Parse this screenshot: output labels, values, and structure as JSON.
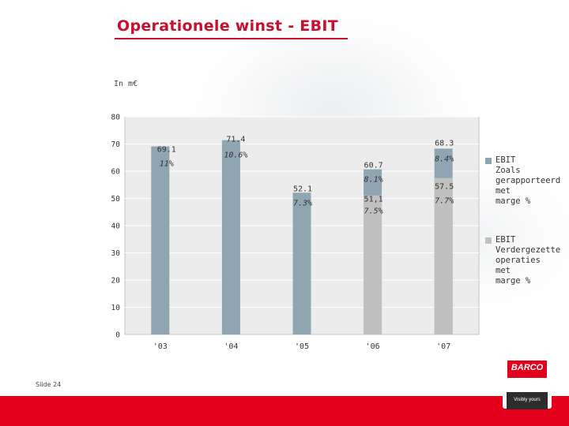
{
  "title": "Operationele winst - EBIT",
  "unit_label": "In m€",
  "slide_label": "Slide 24",
  "logo": {
    "brand": "BARCO",
    "tagline": "Visibly yours"
  },
  "colors": {
    "title": "#c8102e",
    "bar_blue": "#8fa5b2",
    "bar_grey": "#c0c0c0",
    "plot_bg": "#ececec",
    "brand_red": "#e3001b"
  },
  "legend": [
    {
      "label": "EBIT\nZoals\ngerapporteerd\nmet\nmarge %",
      "color": "#8fa5b2"
    },
    {
      "label": "EBIT\nVerdergezette\noperaties\nmet\nmarge %",
      "color": "#c0c0c0"
    }
  ],
  "chart_data": {
    "type": "bar",
    "categories": [
      "'03",
      "'04",
      "'05",
      "'06",
      "'07"
    ],
    "ylim": [
      0,
      80
    ],
    "yticks": [
      0,
      10,
      20,
      30,
      40,
      50,
      60,
      70,
      80
    ],
    "grid": true,
    "legend_position": "right",
    "series": [
      {
        "name": "EBIT Zoals gerapporteerd met marge %",
        "values": [
          69.1,
          71.4,
          52.1,
          60.7,
          68.3
        ],
        "value_labels": [
          "69.1",
          "71.4",
          "52.1",
          "60.7",
          "68.3"
        ],
        "margins": [
          "11%",
          "10.6%",
          "7.3%",
          "8.1%",
          "8.4%"
        ]
      },
      {
        "name": "EBIT Verdergezette operaties met marge %",
        "values": [
          null,
          null,
          null,
          51.1,
          57.5
        ],
        "value_labels": [
          null,
          null,
          null,
          "51,1",
          "57.5"
        ],
        "margins": [
          null,
          null,
          null,
          "7.5%",
          "7.7%"
        ]
      }
    ]
  }
}
